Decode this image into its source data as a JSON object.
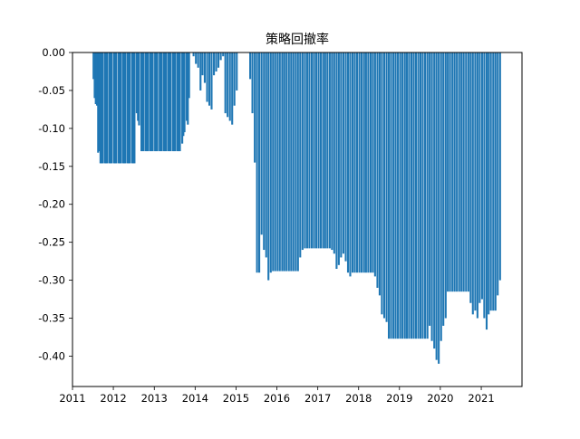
{
  "chart_data": {
    "type": "bar",
    "title": "策略回撤率",
    "xlabel": "",
    "ylabel": "",
    "x_axis": "date",
    "xlim": [
      "2011-01-01",
      "2021-12-31"
    ],
    "ylim": [
      -0.44,
      0.0
    ],
    "x_ticks": [
      "2011",
      "2012",
      "2013",
      "2014",
      "2015",
      "2016",
      "2017",
      "2018",
      "2019",
      "2020",
      "2021"
    ],
    "y_ticks": [
      "0.00",
      "-0.05",
      "-0.10",
      "-0.15",
      "-0.20",
      "-0.25",
      "-0.30",
      "-0.35",
      "-0.40"
    ],
    "grid": false,
    "legend": "none",
    "bar_color": "#1f77b4",
    "series": [
      {
        "values": [
          [
            "2011-07-08",
            -0.035
          ],
          [
            "2011-07-18",
            -0.06
          ],
          [
            "2011-07-28",
            -0.068
          ],
          [
            "2011-08-08",
            -0.07
          ],
          [
            "2011-08-18",
            -0.132
          ],
          [
            "2011-08-28",
            -0.13
          ],
          [
            "2011-09-08",
            -0.146
          ],
          [
            "2011-09-18",
            -0.146
          ],
          [
            "2011-09-28",
            -0.146
          ],
          [
            "2011-10-18",
            -0.146
          ],
          [
            "2011-10-28",
            -0.146
          ],
          [
            "2011-11-08",
            -0.146
          ],
          [
            "2011-11-28",
            -0.146
          ],
          [
            "2011-12-08",
            -0.146
          ],
          [
            "2011-12-18",
            -0.146
          ],
          [
            "2012-01-08",
            -0.146
          ],
          [
            "2012-01-18",
            -0.146
          ],
          [
            "2012-01-28",
            -0.146
          ],
          [
            "2012-02-18",
            -0.146
          ],
          [
            "2012-02-28",
            -0.146
          ],
          [
            "2012-03-08",
            -0.146
          ],
          [
            "2012-03-28",
            -0.146
          ],
          [
            "2012-04-08",
            -0.146
          ],
          [
            "2012-04-18",
            -0.146
          ],
          [
            "2012-05-08",
            -0.146
          ],
          [
            "2012-05-18",
            -0.146
          ],
          [
            "2012-05-28",
            -0.146
          ],
          [
            "2012-06-18",
            -0.146
          ],
          [
            "2012-06-28",
            -0.146
          ],
          [
            "2012-07-08",
            -0.146
          ],
          [
            "2012-07-28",
            -0.08
          ],
          [
            "2012-08-08",
            -0.09
          ],
          [
            "2012-08-18",
            -0.096
          ],
          [
            "2012-09-08",
            -0.13
          ],
          [
            "2012-09-18",
            -0.13
          ],
          [
            "2012-09-28",
            -0.13
          ],
          [
            "2012-10-18",
            -0.13
          ],
          [
            "2012-10-28",
            -0.13
          ],
          [
            "2012-11-08",
            -0.13
          ],
          [
            "2012-11-28",
            -0.13
          ],
          [
            "2012-12-08",
            -0.13
          ],
          [
            "2012-12-18",
            -0.13
          ],
          [
            "2013-01-08",
            -0.13
          ],
          [
            "2013-01-18",
            -0.13
          ],
          [
            "2013-01-28",
            -0.13
          ],
          [
            "2013-02-18",
            -0.13
          ],
          [
            "2013-02-28",
            -0.13
          ],
          [
            "2013-03-08",
            -0.13
          ],
          [
            "2013-03-28",
            -0.13
          ],
          [
            "2013-04-08",
            -0.13
          ],
          [
            "2013-04-18",
            -0.13
          ],
          [
            "2013-05-08",
            -0.13
          ],
          [
            "2013-05-18",
            -0.13
          ],
          [
            "2013-05-28",
            -0.13
          ],
          [
            "2013-06-18",
            -0.13
          ],
          [
            "2013-06-28",
            -0.13
          ],
          [
            "2013-07-08",
            -0.13
          ],
          [
            "2013-07-28",
            -0.13
          ],
          [
            "2013-08-08",
            -0.13
          ],
          [
            "2013-08-18",
            -0.13
          ],
          [
            "2013-09-08",
            -0.12
          ],
          [
            "2013-09-18",
            -0.11
          ],
          [
            "2013-09-28",
            -0.105
          ],
          [
            "2013-10-18",
            -0.09
          ],
          [
            "2013-10-28",
            -0.095
          ],
          [
            "2013-11-08",
            -0.06
          ],
          [
            "2013-12-18",
            -0.005
          ],
          [
            "2014-01-08",
            -0.015
          ],
          [
            "2014-01-28",
            -0.02
          ],
          [
            "2014-02-18",
            -0.05
          ],
          [
            "2014-03-08",
            -0.03
          ],
          [
            "2014-03-28",
            -0.04
          ],
          [
            "2014-04-18",
            -0.065
          ],
          [
            "2014-05-08",
            -0.07
          ],
          [
            "2014-05-28",
            -0.075
          ],
          [
            "2014-06-18",
            -0.03
          ],
          [
            "2014-07-08",
            -0.025
          ],
          [
            "2014-07-28",
            -0.02
          ],
          [
            "2014-08-18",
            -0.01
          ],
          [
            "2014-09-08",
            -0.005
          ],
          [
            "2014-09-28",
            -0.08
          ],
          [
            "2014-10-18",
            -0.085
          ],
          [
            "2014-11-08",
            -0.09
          ],
          [
            "2014-11-28",
            -0.095
          ],
          [
            "2014-12-18",
            -0.07
          ],
          [
            "2015-01-08",
            -0.05
          ],
          [
            "2015-05-08",
            -0.035
          ],
          [
            "2015-05-28",
            -0.08
          ],
          [
            "2015-06-18",
            -0.145
          ],
          [
            "2015-07-08",
            -0.29
          ],
          [
            "2015-07-28",
            -0.29
          ],
          [
            "2015-08-18",
            -0.24
          ],
          [
            "2015-09-08",
            -0.26
          ],
          [
            "2015-09-28",
            -0.27
          ],
          [
            "2015-10-18",
            -0.3
          ],
          [
            "2015-11-08",
            -0.29
          ],
          [
            "2015-11-28",
            -0.288
          ],
          [
            "2015-12-18",
            -0.288
          ],
          [
            "2016-01-08",
            -0.288
          ],
          [
            "2016-01-28",
            -0.288
          ],
          [
            "2016-02-18",
            -0.288
          ],
          [
            "2016-03-08",
            -0.288
          ],
          [
            "2016-03-28",
            -0.288
          ],
          [
            "2016-04-18",
            -0.288
          ],
          [
            "2016-05-08",
            -0.288
          ],
          [
            "2016-05-28",
            -0.288
          ],
          [
            "2016-06-18",
            -0.288
          ],
          [
            "2016-07-08",
            -0.288
          ],
          [
            "2016-07-28",
            -0.27
          ],
          [
            "2016-08-18",
            -0.26
          ],
          [
            "2016-09-08",
            -0.258
          ],
          [
            "2016-09-28",
            -0.258
          ],
          [
            "2016-10-18",
            -0.258
          ],
          [
            "2016-11-08",
            -0.258
          ],
          [
            "2016-11-28",
            -0.258
          ],
          [
            "2016-12-18",
            -0.258
          ],
          [
            "2017-01-08",
            -0.258
          ],
          [
            "2017-01-28",
            -0.258
          ],
          [
            "2017-02-18",
            -0.258
          ],
          [
            "2017-03-08",
            -0.258
          ],
          [
            "2017-03-28",
            -0.258
          ],
          [
            "2017-04-18",
            -0.258
          ],
          [
            "2017-05-08",
            -0.26
          ],
          [
            "2017-05-28",
            -0.265
          ],
          [
            "2017-06-18",
            -0.285
          ],
          [
            "2017-07-08",
            -0.28
          ],
          [
            "2017-07-28",
            -0.27
          ],
          [
            "2017-08-18",
            -0.265
          ],
          [
            "2017-09-08",
            -0.275
          ],
          [
            "2017-09-28",
            -0.29
          ],
          [
            "2017-10-18",
            -0.295
          ],
          [
            "2017-11-08",
            -0.29
          ],
          [
            "2017-11-28",
            -0.29
          ],
          [
            "2017-12-18",
            -0.29
          ],
          [
            "2018-01-08",
            -0.29
          ],
          [
            "2018-01-28",
            -0.29
          ],
          [
            "2018-02-18",
            -0.29
          ],
          [
            "2018-03-08",
            -0.29
          ],
          [
            "2018-03-28",
            -0.29
          ],
          [
            "2018-04-18",
            -0.29
          ],
          [
            "2018-05-08",
            -0.29
          ],
          [
            "2018-05-28",
            -0.295
          ],
          [
            "2018-06-18",
            -0.31
          ],
          [
            "2018-07-08",
            -0.32
          ],
          [
            "2018-07-28",
            -0.345
          ],
          [
            "2018-08-18",
            -0.35
          ],
          [
            "2018-09-08",
            -0.355
          ],
          [
            "2018-09-28",
            -0.377
          ],
          [
            "2018-10-18",
            -0.377
          ],
          [
            "2018-11-08",
            -0.377
          ],
          [
            "2018-11-28",
            -0.377
          ],
          [
            "2018-12-18",
            -0.377
          ],
          [
            "2019-01-08",
            -0.377
          ],
          [
            "2019-01-28",
            -0.377
          ],
          [
            "2019-02-18",
            -0.377
          ],
          [
            "2019-03-08",
            -0.377
          ],
          [
            "2019-03-28",
            -0.377
          ],
          [
            "2019-04-18",
            -0.377
          ],
          [
            "2019-05-08",
            -0.377
          ],
          [
            "2019-05-28",
            -0.377
          ],
          [
            "2019-06-18",
            -0.377
          ],
          [
            "2019-07-08",
            -0.377
          ],
          [
            "2019-07-28",
            -0.377
          ],
          [
            "2019-08-18",
            -0.377
          ],
          [
            "2019-09-08",
            -0.377
          ],
          [
            "2019-09-28",
            -0.36
          ],
          [
            "2019-10-18",
            -0.38
          ],
          [
            "2019-11-08",
            -0.39
          ],
          [
            "2019-11-28",
            -0.405
          ],
          [
            "2019-12-18",
            -0.41
          ],
          [
            "2020-01-08",
            -0.38
          ],
          [
            "2020-01-28",
            -0.36
          ],
          [
            "2020-02-18",
            -0.35
          ],
          [
            "2020-03-08",
            -0.315
          ],
          [
            "2020-03-28",
            -0.315
          ],
          [
            "2020-04-18",
            -0.315
          ],
          [
            "2020-05-08",
            -0.315
          ],
          [
            "2020-05-28",
            -0.315
          ],
          [
            "2020-06-18",
            -0.315
          ],
          [
            "2020-07-08",
            -0.315
          ],
          [
            "2020-07-28",
            -0.315
          ],
          [
            "2020-08-18",
            -0.315
          ],
          [
            "2020-09-08",
            -0.315
          ],
          [
            "2020-09-28",
            -0.33
          ],
          [
            "2020-10-18",
            -0.345
          ],
          [
            "2020-11-08",
            -0.34
          ],
          [
            "2020-11-28",
            -0.35
          ],
          [
            "2020-12-18",
            -0.33
          ],
          [
            "2021-01-08",
            -0.325
          ],
          [
            "2021-01-28",
            -0.35
          ],
          [
            "2021-02-18",
            -0.365
          ],
          [
            "2021-03-08",
            -0.345
          ],
          [
            "2021-03-28",
            -0.34
          ],
          [
            "2021-04-18",
            -0.34
          ],
          [
            "2021-05-08",
            -0.34
          ],
          [
            "2021-05-28",
            -0.32
          ],
          [
            "2021-06-18",
            -0.3
          ]
        ]
      }
    ]
  }
}
